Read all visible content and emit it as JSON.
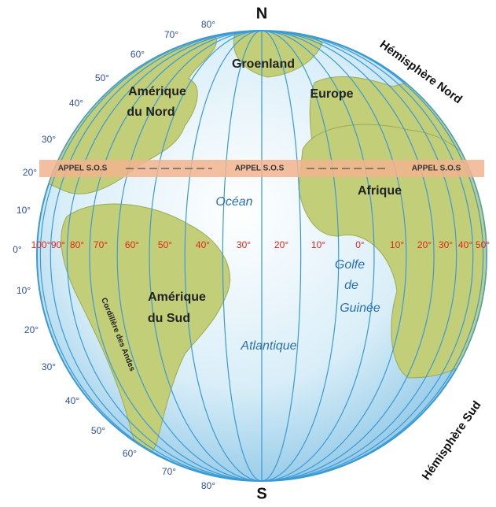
{
  "poles": {
    "north": "N",
    "south": "S"
  },
  "hemispheres": {
    "north": "Hémisphère Nord",
    "south": "Hémisphère Sud"
  },
  "regions": {
    "north_america": [
      "Amérique",
      "du Nord"
    ],
    "greenland": "Groenland",
    "europe": "Europe",
    "africa": "Afrique",
    "south_america": [
      "Amérique",
      "du Sud"
    ],
    "andes": "Cordillère des Andes",
    "ocean": "Océan",
    "atlantic": "Atlantique",
    "gulf": [
      "Golfe",
      "de",
      "Guinée"
    ]
  },
  "sos_labels": [
    "APPEL S.O.S",
    "APPEL S.O.S",
    "APPEL S.O.S"
  ],
  "latitude_labels": [
    "80°",
    "70°",
    "60°",
    "50°",
    "40°",
    "30°",
    "20°",
    "10°",
    "0°",
    "10°",
    "20°",
    "30°",
    "40°",
    "50°",
    "60°",
    "70°",
    "80°"
  ],
  "longitude_labels": [
    "100°",
    "90°",
    "80°",
    "70°",
    "60°",
    "50°",
    "40°",
    "30°",
    "20°",
    "10°",
    "0°",
    "10°",
    "20°",
    "30°",
    "40°",
    "50°"
  ]
}
